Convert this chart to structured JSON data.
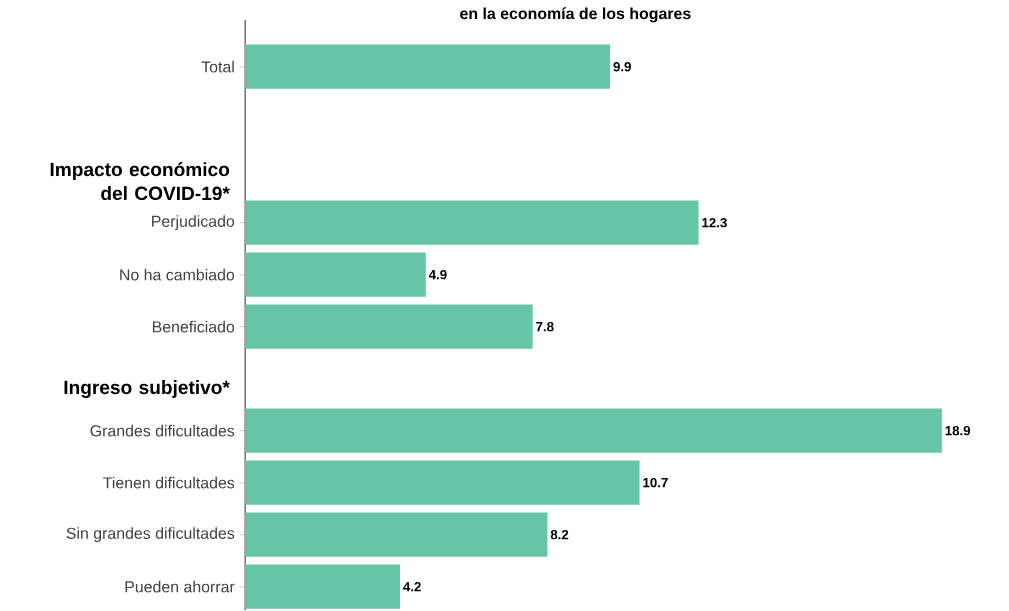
{
  "chart_data": {
    "type": "bar",
    "orientation": "horizontal",
    "title": "en la economía de los hogares",
    "categories": [
      "Total",
      null,
      null,
      "Perjudicado",
      "No ha cambiado",
      "Beneficiado",
      null,
      "Grandes dificultades",
      "Tienen dificultades",
      "Sin grandes dificultades",
      "Pueden ahorrar"
    ],
    "values": [
      9.9,
      null,
      null,
      12.3,
      4.9,
      7.8,
      null,
      18.9,
      10.7,
      8.2,
      4.2
    ],
    "color": "#66c5a6",
    "data_labels": true,
    "tick_labels": "y",
    "annotations": [
      "Impacto económico del COVID-19*",
      "Ingreso subjetivo*"
    ]
  }
}
